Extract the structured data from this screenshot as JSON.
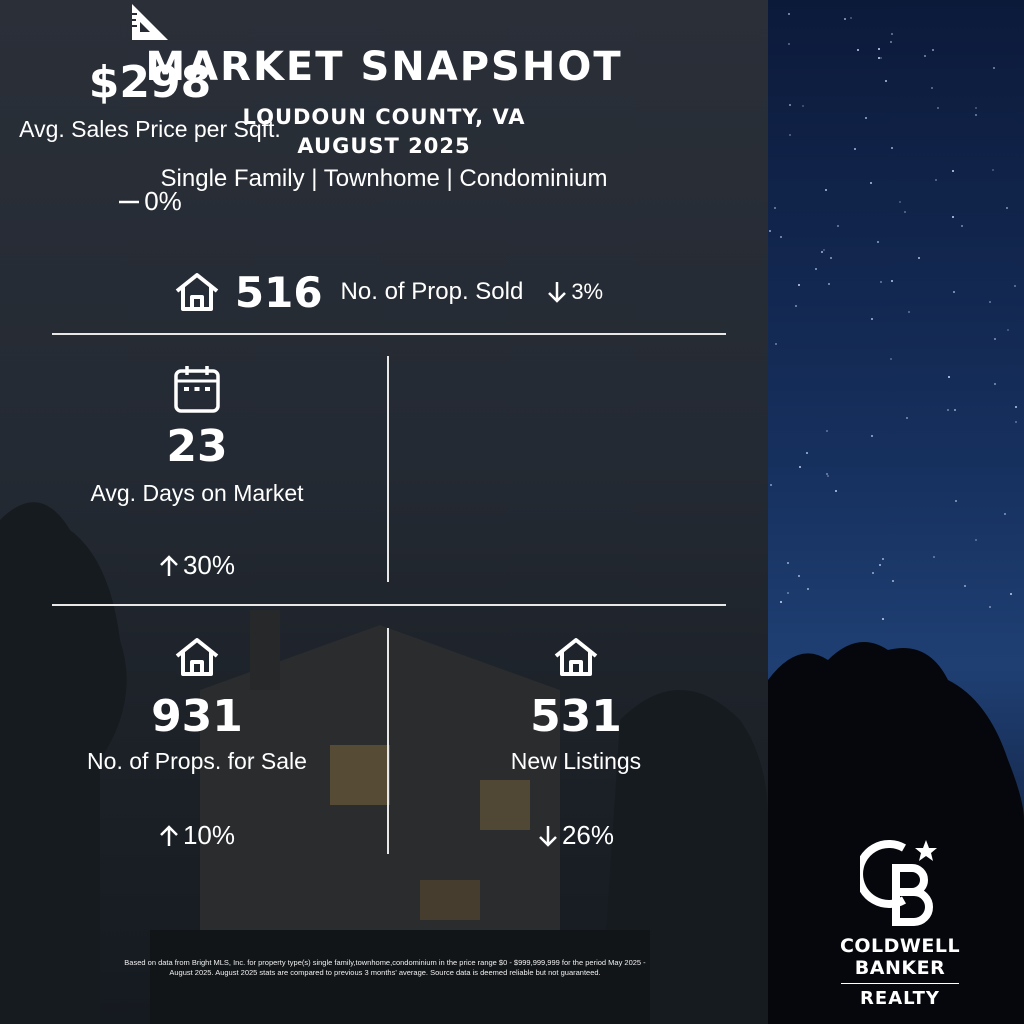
{
  "header": {
    "title": "MARKET SNAPSHOT",
    "county": "LOUDOUN COUNTY, VA",
    "month": "AUGUST 2025",
    "property_types": "Single Family | Townhome | Condominium"
  },
  "sold": {
    "icon": "house-icon",
    "value": "516",
    "label": "No. of Prop. Sold",
    "direction": "down",
    "change": "3%"
  },
  "stats": {
    "days_on_market": {
      "icon": "calendar-icon",
      "value": "23",
      "label": "Avg. Days on Market",
      "direction": "up",
      "change": "30%"
    },
    "price_per_sqft": {
      "icon": "triangle-ruler-icon",
      "value": "$298",
      "label": "Avg. Sales Price per Sqft.",
      "direction": "flat",
      "change": "0%"
    },
    "props_for_sale": {
      "icon": "house-icon",
      "value": "931",
      "label": "No. of Props. for Sale",
      "direction": "up",
      "change": "10%"
    },
    "new_listings": {
      "icon": "house-icon",
      "value": "531",
      "label": "New Listings",
      "direction": "down",
      "change": "26%"
    }
  },
  "disclaimer": "Based on data from Bright MLS, Inc. for property type(s) single family,townhome,condominium in the price range $0 - $999,999,999 for the period May 2025 - August 2025. August 2025 stats are compared to previous 3 months' average. Source data is deemed reliable but not guaranteed.",
  "logo": {
    "monogram": "CB",
    "line1": "COLDWELL",
    "line2": "BANKER",
    "line3": "REALTY"
  },
  "colors": {
    "text": "#ffffff",
    "panel": "#262b33",
    "sky": "#16305e"
  }
}
